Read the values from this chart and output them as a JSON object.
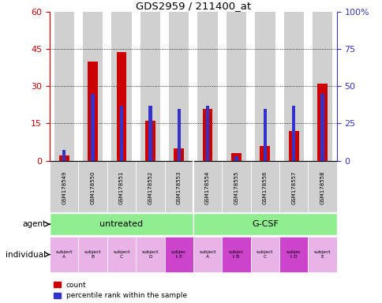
{
  "title": "GDS2959 / 211400_at",
  "samples": [
    "GSM178549",
    "GSM178550",
    "GSM178551",
    "GSM178552",
    "GSM178553",
    "GSM178554",
    "GSM178555",
    "GSM178556",
    "GSM178557",
    "GSM178558"
  ],
  "red_values": [
    2,
    40,
    44,
    16,
    5,
    21,
    3,
    6,
    12,
    31
  ],
  "blue_percentiles": [
    7,
    45,
    37,
    37,
    35,
    37,
    3,
    35,
    37,
    45
  ],
  "ylim_left": [
    0,
    60
  ],
  "ylim_right": [
    0,
    100
  ],
  "yticks_left": [
    0,
    15,
    30,
    45,
    60
  ],
  "ytick_labels_left": [
    "0",
    "15",
    "30",
    "45",
    "60"
  ],
  "yticks_right": [
    0,
    25,
    50,
    75,
    100
  ],
  "ytick_labels_right": [
    "0",
    "25",
    "50",
    "75",
    "100%"
  ],
  "individual_labels": [
    "subject\nA",
    "subject\nB",
    "subject\nC",
    "subject\nD",
    "subjec\nt E",
    "subject\nA",
    "subjec\nt B",
    "subject\nC",
    "subjec\nt D",
    "subject\nE"
  ],
  "highlight_individuals": [
    4,
    6,
    8
  ],
  "individual_colors_normal": "#e8b4e8",
  "individual_colors_highlight": "#cc44cc",
  "red_color": "#cc0000",
  "blue_color": "#3333cc",
  "left_axis_color": "#cc0000",
  "right_axis_color": "#3333cc",
  "bar_bg_color": "#d0d0d0",
  "grid_vals": [
    15,
    30,
    45
  ],
  "agent_color": "#90EE90"
}
